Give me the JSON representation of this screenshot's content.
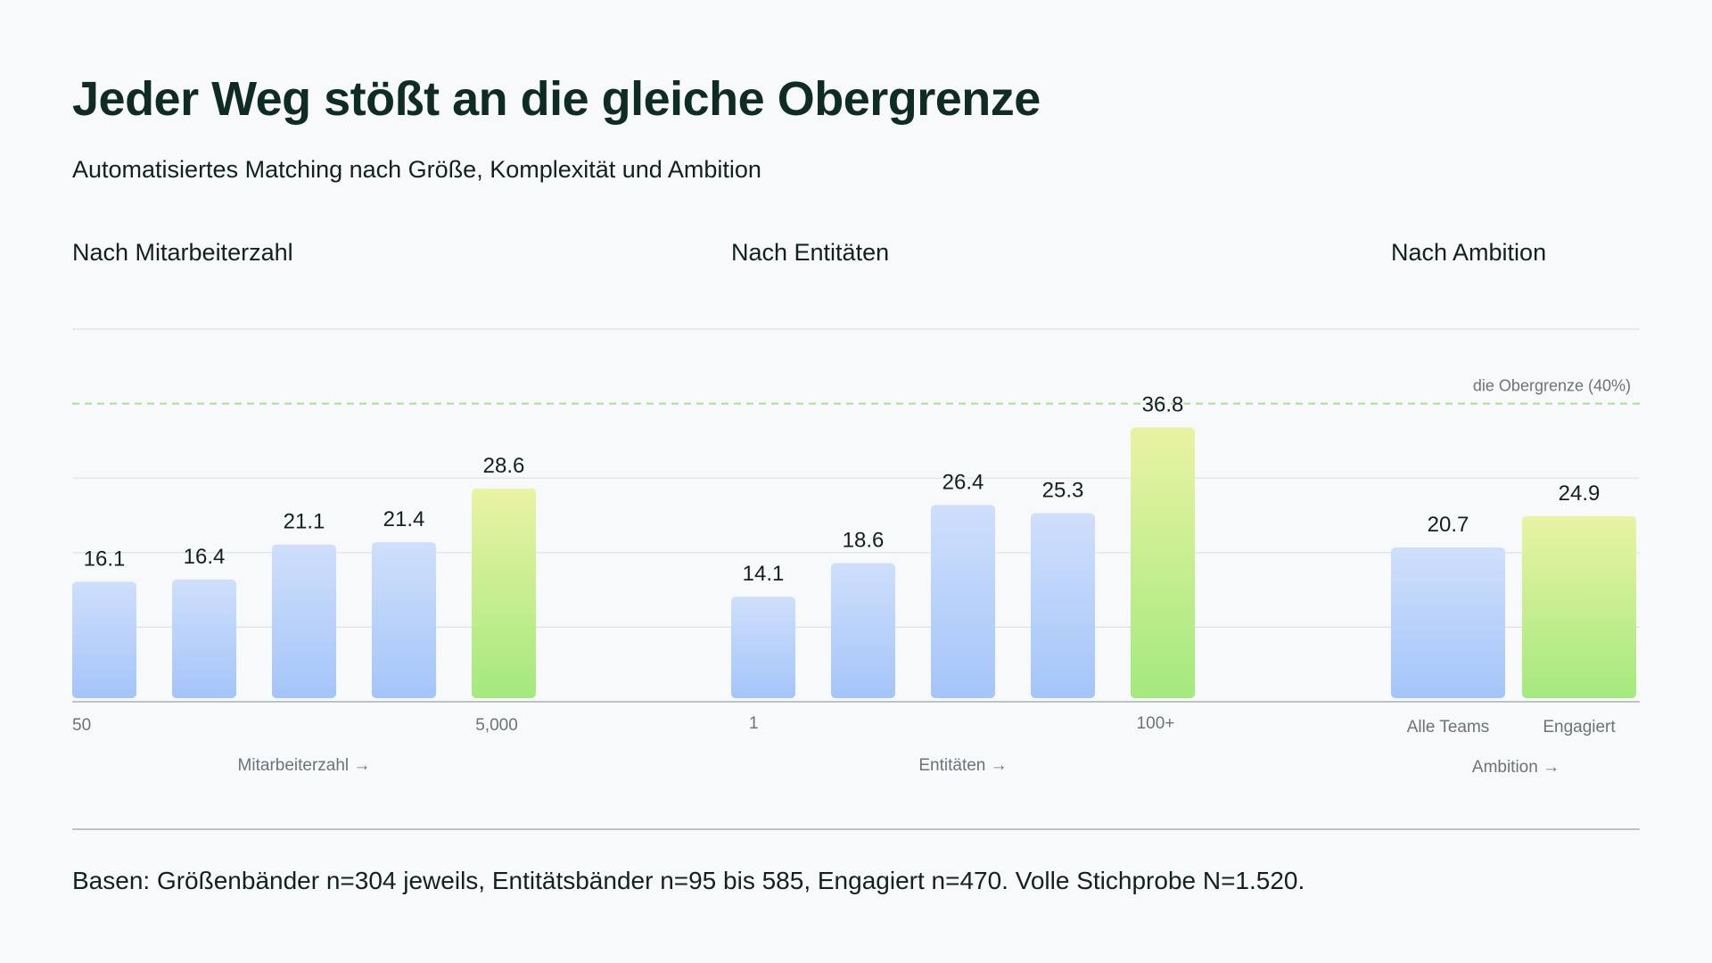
{
  "title": "Jeder Weg stößt an die gleiche Obergrenze",
  "subtitle": "Automatisiertes Matching nach Größe, Komplexität und Ambition",
  "footnote": "Basen: Größenbänder n=304 jeweils, Entitätsbänder n=95 bis 585, Engagiert n=470. Volle Stichprobe N=1.520.",
  "colors": {
    "bar_blue_top": "#cfdffb",
    "bar_blue_bottom": "#a4c5fa",
    "bar_green_top": "#eaf3a3",
    "bar_green_bottom": "#a4e97e",
    "ceiling_line": "#a9e28e",
    "grid": "#dde2e6",
    "axis": "#a9b0b6"
  },
  "chart_data": [
    {
      "type": "bar",
      "title": "Nach Mitarbeiterzahl",
      "xlabel": "Mitarbeiterzahl →",
      "tick_labels": [
        {
          "label": "50",
          "at_bar": 0
        },
        {
          "label": "5,000",
          "at_bar": 4
        }
      ],
      "values": [
        16.1,
        16.4,
        21.1,
        21.4,
        28.6
      ],
      "highlight_index": 4,
      "ylim": [
        0,
        50
      ]
    },
    {
      "type": "bar",
      "title": "Nach Entitäten",
      "xlabel": "Entitäten →",
      "tick_labels": [
        {
          "label": "1",
          "at_bar": 0
        },
        {
          "label": "100+",
          "at_bar": 4
        }
      ],
      "values": [
        14.1,
        18.6,
        26.4,
        25.3,
        36.8
      ],
      "highlight_index": 4,
      "ylim": [
        0,
        50
      ]
    },
    {
      "type": "bar",
      "title": "Nach Ambition",
      "xlabel": "Ambition →",
      "categories": [
        "Alle Teams",
        "Engagiert"
      ],
      "values": [
        20.7,
        24.9
      ],
      "highlight_index": 1,
      "ylim": [
        0,
        50
      ]
    }
  ],
  "reference_line": {
    "label": "die Obergrenze (40%)",
    "value": 40
  },
  "grid": true
}
